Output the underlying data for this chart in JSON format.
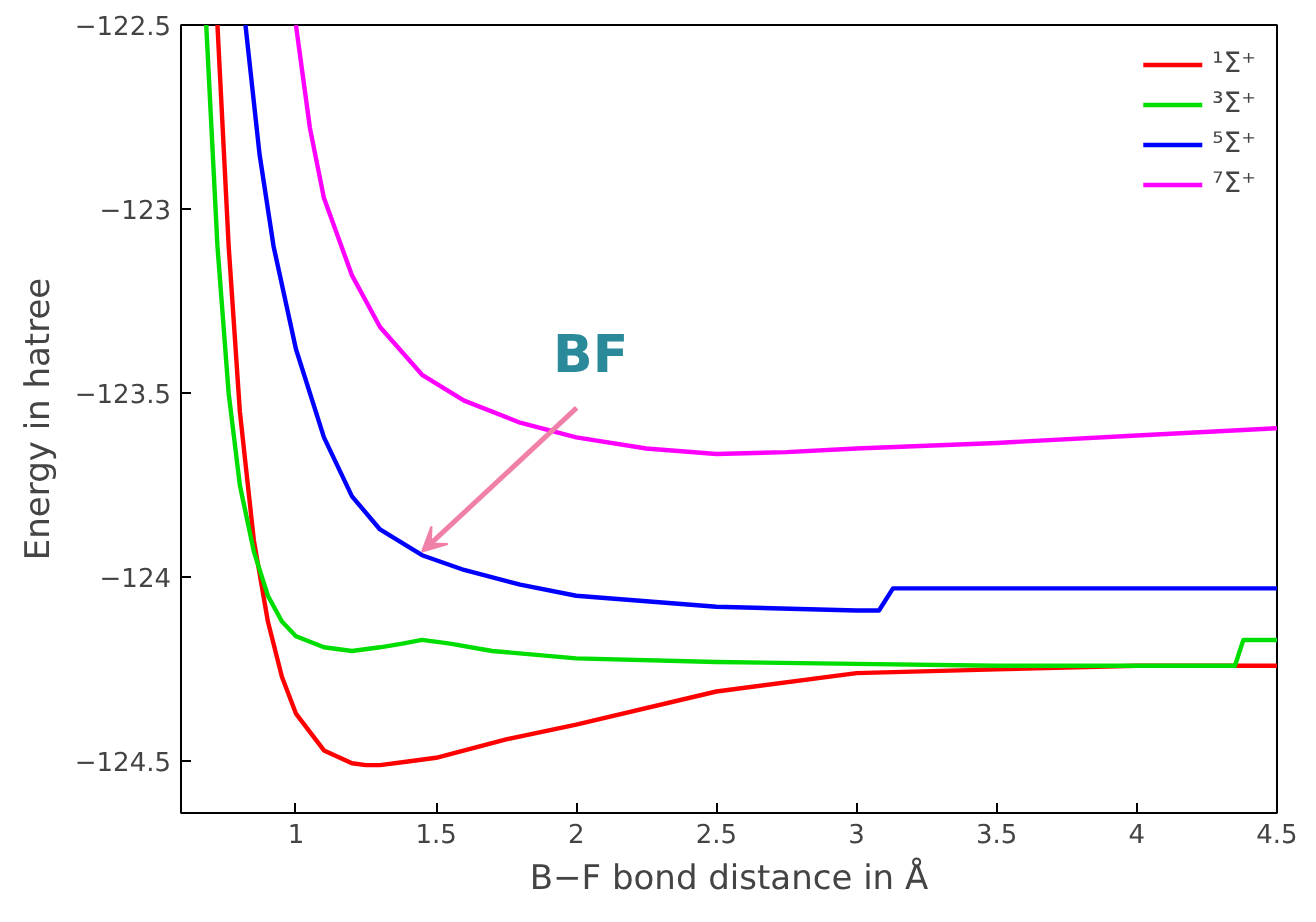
{
  "chart_data": {
    "type": "line",
    "xlabel": "B−F bond distance in Å",
    "ylabel": "Energy in hatree",
    "xlim": [
      0.59,
      4.5
    ],
    "ylim": [
      -124.64,
      -122.5
    ],
    "xticks": [
      1,
      1.5,
      2,
      2.5,
      3,
      3.5,
      4,
      4.5
    ],
    "yticks": [
      {
        "value": -122.5,
        "label": "−122.5"
      },
      {
        "value": -123,
        "label": "−123"
      },
      {
        "value": -123.5,
        "label": "−123.5"
      },
      {
        "value": -124,
        "label": "−124"
      },
      {
        "value": -124.5,
        "label": "−124.5"
      }
    ],
    "grid": false,
    "legend": "top right",
    "line_style": "solid",
    "marker": "none",
    "series": [
      {
        "name": "¹Σ⁺",
        "color": "#ff0000",
        "x": [
          0.72,
          0.76,
          0.8,
          0.85,
          0.9,
          0.95,
          1.0,
          1.1,
          1.2,
          1.25,
          1.3,
          1.4,
          1.5,
          1.75,
          2.0,
          2.5,
          3.0,
          3.5,
          4.0,
          4.5
        ],
        "values": [
          -122.5,
          -123.1,
          -123.55,
          -123.9,
          -124.12,
          -124.27,
          -124.37,
          -124.47,
          -124.505,
          -124.51,
          -124.51,
          -124.5,
          -124.49,
          -124.44,
          -124.4,
          -124.31,
          -124.26,
          -124.25,
          -124.24,
          -124.24
        ]
      },
      {
        "name": "³Σ⁺",
        "color": "#00dd00",
        "x": [
          0.68,
          0.72,
          0.76,
          0.8,
          0.85,
          0.9,
          0.95,
          1.0,
          1.1,
          1.2,
          1.3,
          1.38,
          1.45,
          1.55,
          1.7,
          2.0,
          2.5,
          3.0,
          3.5,
          4.0,
          4.35,
          4.38,
          4.5
        ],
        "values": [
          -122.5,
          -123.1,
          -123.5,
          -123.75,
          -123.93,
          -124.05,
          -124.12,
          -124.16,
          -124.19,
          -124.2,
          -124.19,
          -124.18,
          -124.17,
          -124.18,
          -124.2,
          -124.22,
          -124.23,
          -124.235,
          -124.24,
          -124.24,
          -124.24,
          -124.17,
          -124.17
        ]
      },
      {
        "name": "⁵Σ⁺",
        "color": "#0000ff",
        "x": [
          0.82,
          0.87,
          0.92,
          1.0,
          1.1,
          1.2,
          1.3,
          1.45,
          1.6,
          1.8,
          2.0,
          2.5,
          3.0,
          3.08,
          3.13,
          3.5,
          4.0,
          4.5
        ],
        "values": [
          -122.5,
          -122.85,
          -123.1,
          -123.38,
          -123.62,
          -123.78,
          -123.87,
          -123.94,
          -123.98,
          -124.02,
          -124.05,
          -124.08,
          -124.09,
          -124.09,
          -124.03,
          -124.03,
          -124.03,
          -124.03
        ]
      },
      {
        "name": "⁷Σ⁺",
        "color": "#ff00ff",
        "x": [
          1.0,
          1.05,
          1.1,
          1.2,
          1.3,
          1.45,
          1.6,
          1.8,
          2.0,
          2.25,
          2.5,
          2.75,
          3.0,
          3.5,
          4.0,
          4.5
        ],
        "values": [
          -122.5,
          -122.78,
          -122.97,
          -123.18,
          -123.32,
          -123.45,
          -123.52,
          -123.58,
          -123.62,
          -123.65,
          -123.665,
          -123.66,
          -123.65,
          -123.635,
          -123.615,
          -123.595
        ]
      }
    ],
    "annotations": [
      {
        "text": "BF",
        "x": 1.45,
        "y": -123.93
      }
    ]
  }
}
